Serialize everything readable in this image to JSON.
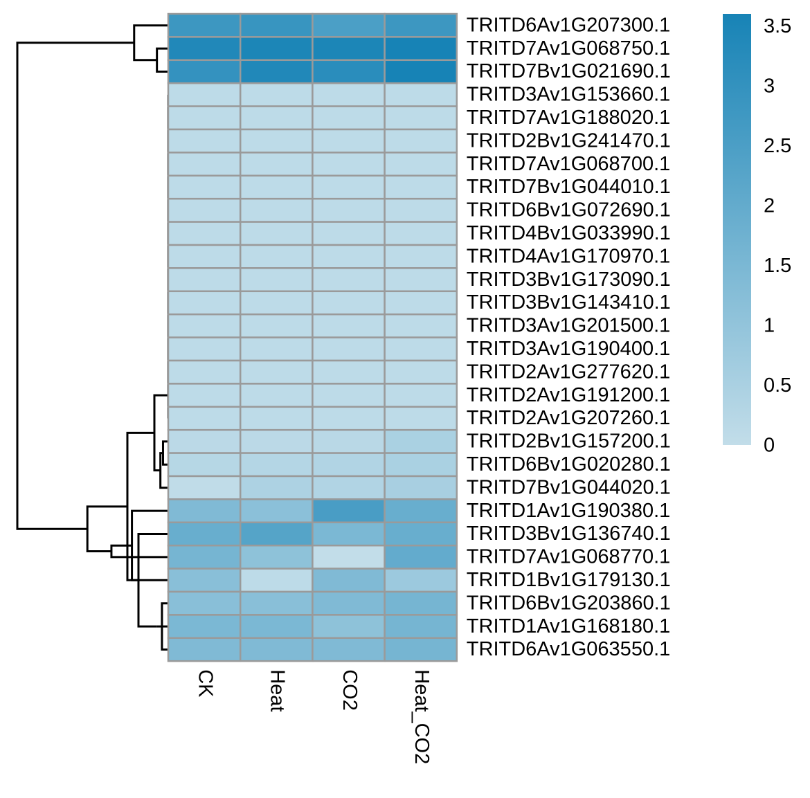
{
  "chart_data": {
    "type": "heatmap",
    "title": "",
    "columns": [
      "CK",
      "Heat",
      "CO2",
      "Heat_CO2"
    ],
    "rows": [
      "TRITD6Av1G207300.1",
      "TRITD7Av1G068750.1",
      "TRITD7Bv1G021690.1",
      "TRITD3Av1G153660.1",
      "TRITD7Av1G188020.1",
      "TRITD2Bv1G241470.1",
      "TRITD7Av1G068700.1",
      "TRITD7Bv1G044010.1",
      "TRITD6Bv1G072690.1",
      "TRITD4Bv1G033990.1",
      "TRITD4Av1G170970.1",
      "TRITD3Bv1G173090.1",
      "TRITD3Bv1G143410.1",
      "TRITD3Av1G201500.1",
      "TRITD3Av1G190400.1",
      "TRITD2Av1G277620.1",
      "TRITD2Av1G191200.1",
      "TRITD2Av1G207260.1",
      "TRITD2Bv1G157200.1",
      "TRITD6Bv1G020280.1",
      "TRITD7Bv1G044020.1",
      "TRITD1Av1G190380.1",
      "TRITD3Bv1G136740.1",
      "TRITD7Av1G068770.1",
      "TRITD1Bv1G179130.1",
      "TRITD6Bv1G203860.1",
      "TRITD1Av1G168180.1",
      "TRITD6Av1G063550.1"
    ],
    "values": [
      [
        2.8,
        2.9,
        2.5,
        2.8
      ],
      [
        3.4,
        3.5,
        3.5,
        3.6
      ],
      [
        3.0,
        3.4,
        3.2,
        3.6
      ],
      [
        0.1,
        0.1,
        0.1,
        0.1
      ],
      [
        0.1,
        0.1,
        0.1,
        0.1
      ],
      [
        0.1,
        0.1,
        0.1,
        0.1
      ],
      [
        0.1,
        0.1,
        0.1,
        0.1
      ],
      [
        0.1,
        0.1,
        0.1,
        0.1
      ],
      [
        0.1,
        0.1,
        0.1,
        0.1
      ],
      [
        0.1,
        0.1,
        0.1,
        0.1
      ],
      [
        0.1,
        0.1,
        0.1,
        0.1
      ],
      [
        0.1,
        0.1,
        0.1,
        0.1
      ],
      [
        0.1,
        0.1,
        0.1,
        0.1
      ],
      [
        0.1,
        0.1,
        0.1,
        0.1
      ],
      [
        0.1,
        0.1,
        0.1,
        0.1
      ],
      [
        0.1,
        0.1,
        0.1,
        0.1
      ],
      [
        0.1,
        0.1,
        0.1,
        0.1
      ],
      [
        0.1,
        0.1,
        0.1,
        0.1
      ],
      [
        0.15,
        0.15,
        0.2,
        0.5
      ],
      [
        0.25,
        0.3,
        0.35,
        0.5
      ],
      [
        0.05,
        0.45,
        0.35,
        0.55
      ],
      [
        1.4,
        1.15,
        2.55,
        1.9
      ],
      [
        1.9,
        2.3,
        1.5,
        1.9
      ],
      [
        1.6,
        1.1,
        0.0,
        2.0
      ],
      [
        1.2,
        0.1,
        1.4,
        0.8
      ],
      [
        1.2,
        1.2,
        1.4,
        1.6
      ],
      [
        1.5,
        1.5,
        1.1,
        1.6
      ],
      [
        1.4,
        1.4,
        1.4,
        1.6
      ]
    ],
    "color_scale": {
      "min": 0,
      "max": 3.6,
      "low_color": "#c2dde9",
      "high_color": "#1783b6"
    },
    "legend": {
      "position": "right",
      "ticks": [
        "0",
        "0.5",
        "1",
        "1.5",
        "2",
        "2.5",
        "3",
        "3.5"
      ],
      "tick_values": [
        0,
        0.5,
        1,
        1.5,
        2,
        2.5,
        3,
        3.5
      ]
    },
    "cell_border_color": "#9a9a9a",
    "row_dendrogram": true,
    "column_dendrogram": false
  }
}
